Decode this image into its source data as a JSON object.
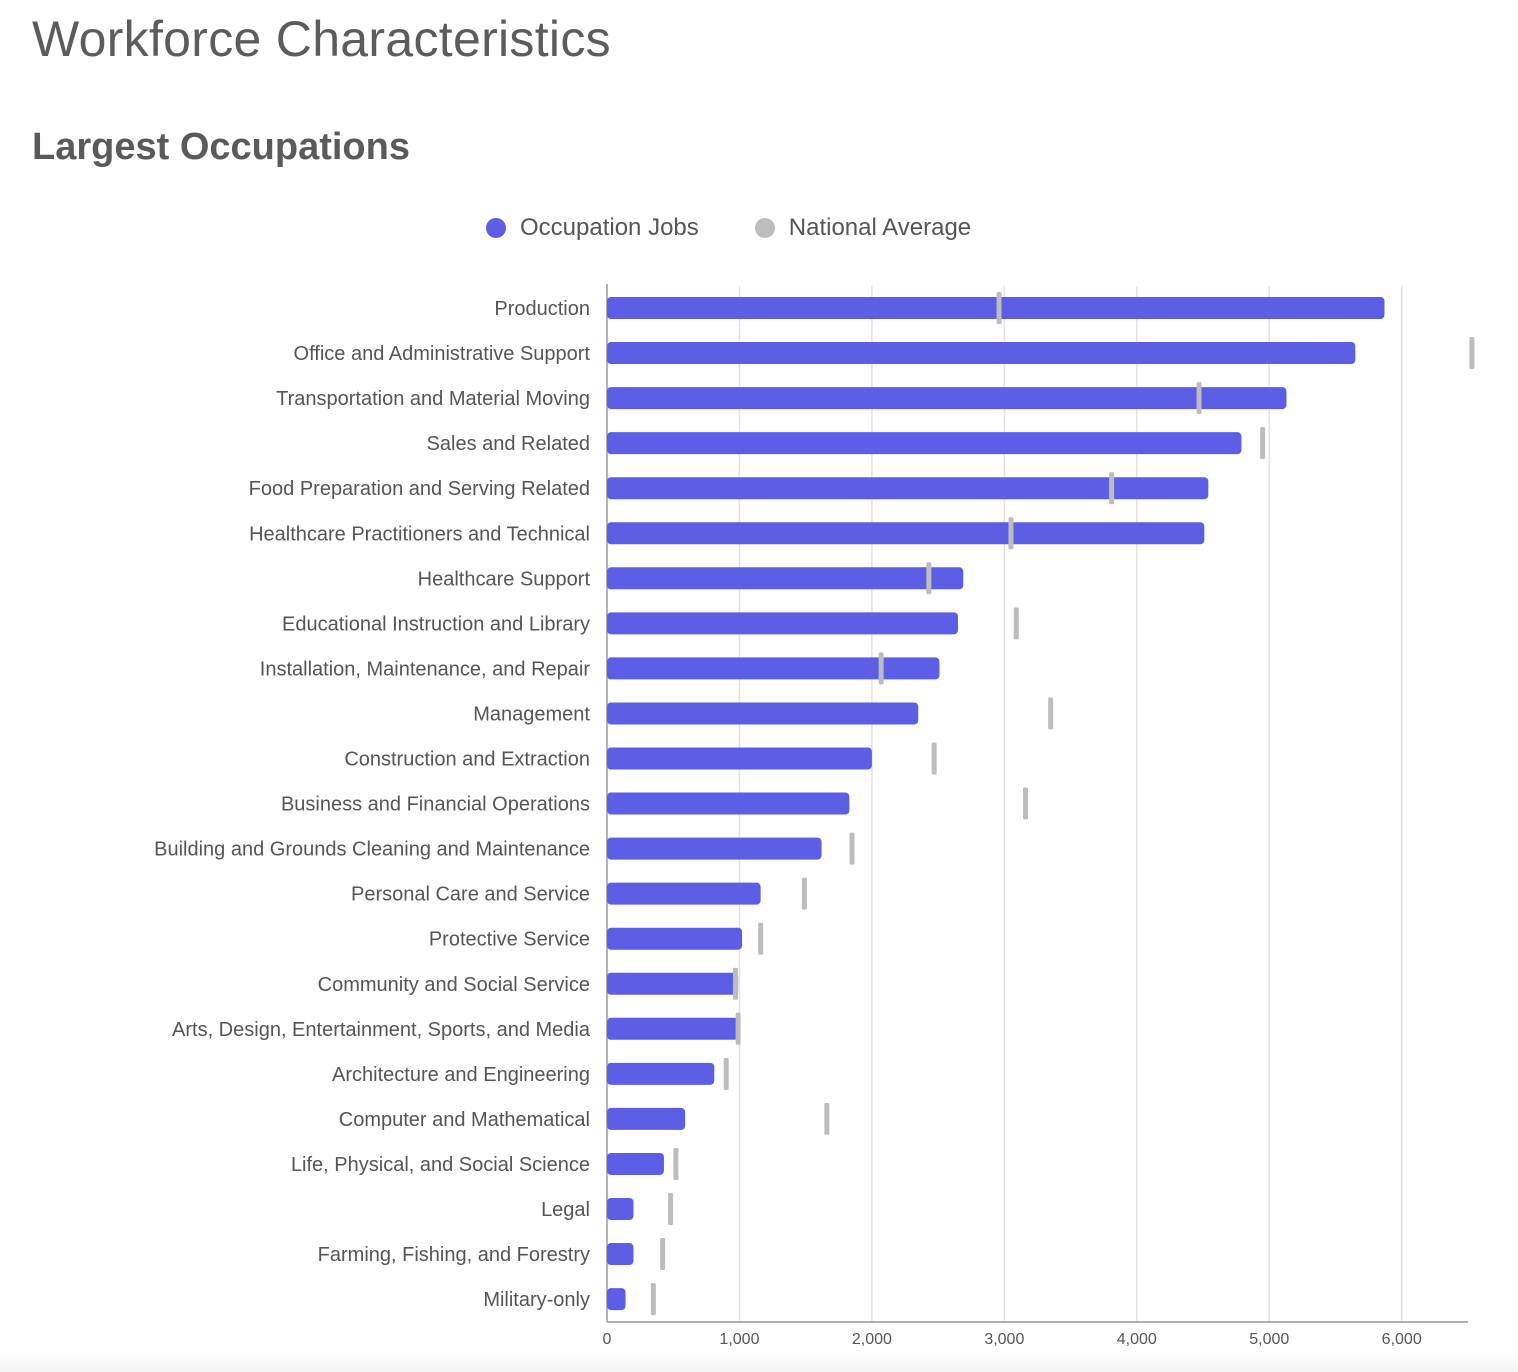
{
  "page": {
    "title": "Workforce Characteristics",
    "section_title": "Largest Occupations"
  },
  "colors": {
    "occupation_jobs": "#5c5fe6",
    "national_average": "#bdbdbd",
    "gridline": "#e2e2e2",
    "axis": "#999999",
    "label_text": "#555555"
  },
  "chart_data": {
    "type": "bar",
    "orientation": "horizontal",
    "title": "",
    "xlabel": "",
    "ylabel": "",
    "xlim": [
      0,
      6500
    ],
    "xticks": [
      0,
      1000,
      2000,
      3000,
      4000,
      5000,
      6000
    ],
    "xtick_labels": [
      "0",
      "1,000",
      "2,000",
      "3,000",
      "4,000",
      "5,000",
      "6,000"
    ],
    "grid": "vertical",
    "legend_position": "top",
    "categories": [
      "Production",
      "Office and Administrative Support",
      "Transportation and Material Moving",
      "Sales and Related",
      "Food Preparation and Serving Related",
      "Healthcare Practitioners and Technical",
      "Healthcare Support",
      "Educational Instruction and Library",
      "Installation, Maintenance, and Repair",
      "Management",
      "Construction and Extraction",
      "Business and Financial Operations",
      "Building and Grounds Cleaning and Maintenance",
      "Personal Care and Service",
      "Protective Service",
      "Community and Social Service",
      "Arts, Design, Entertainment, Sports, and Media",
      "Architecture and Engineering",
      "Computer and Mathematical",
      "Life, Physical, and Social Science",
      "Legal",
      "Farming, Fishing, and Forestry",
      "Military-only"
    ],
    "series": [
      {
        "name": "Occupation Jobs",
        "values": [
          5870,
          5650,
          5130,
          4790,
          4540,
          4510,
          2690,
          2650,
          2510,
          2350,
          2000,
          1830,
          1620,
          1160,
          1020,
          990,
          990,
          810,
          590,
          430,
          200,
          200,
          140
        ]
      },
      {
        "name": "National Average",
        "values": [
          2960,
          6530,
          4470,
          4950,
          3810,
          3050,
          2430,
          3090,
          2070,
          3350,
          2470,
          3160,
          1850,
          1490,
          1160,
          970,
          990,
          900,
          1660,
          520,
          480,
          420,
          350
        ]
      }
    ]
  }
}
